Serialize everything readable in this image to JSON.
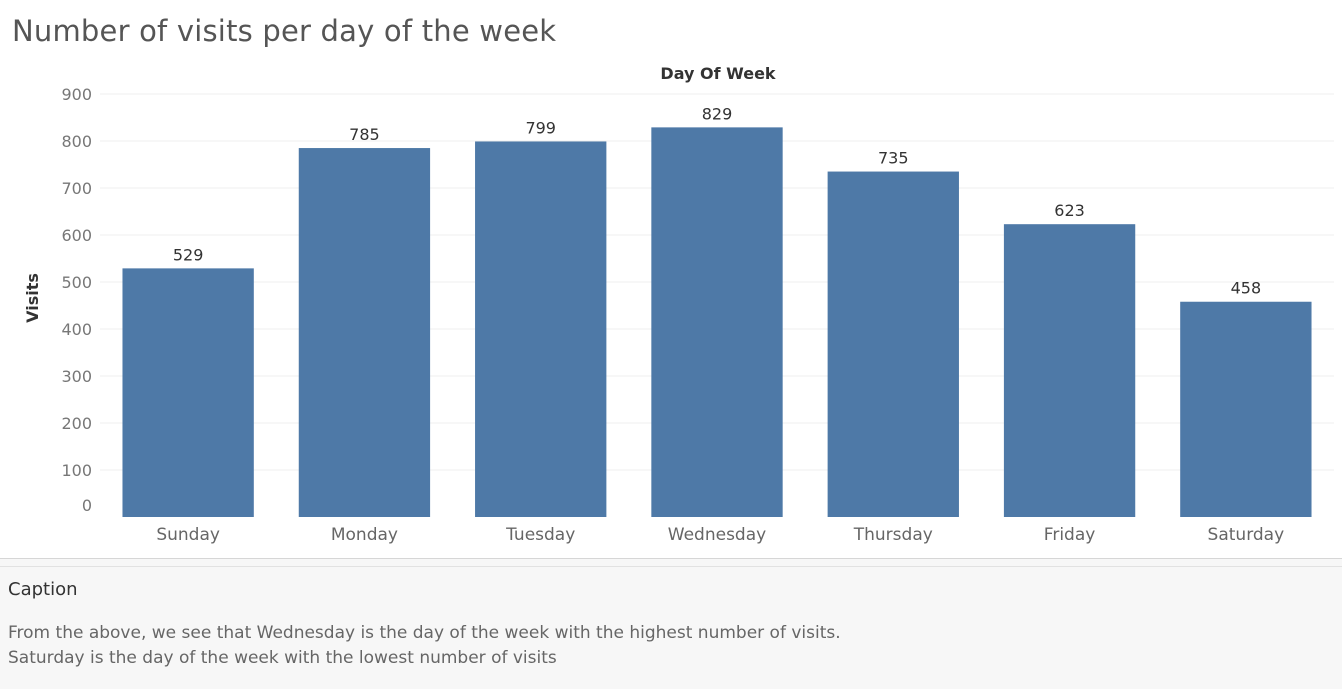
{
  "title": "Number of visits per day of the week",
  "caption": {
    "title": "Caption",
    "lines": [
      "From the above, we see that Wednesday is the day of the week with the highest number of visits.",
      "Saturday is the day of the week with the lowest number of visits"
    ]
  },
  "chart_data": {
    "type": "bar",
    "title": "Number of visits per day of the week",
    "xlabel": "Day Of Week",
    "ylabel": "Visits",
    "categories": [
      "Sunday",
      "Monday",
      "Tuesday",
      "Wednesday",
      "Thursday",
      "Friday",
      "Saturday"
    ],
    "values": [
      529,
      785,
      799,
      829,
      735,
      623,
      458
    ],
    "ylim": [
      0,
      900
    ],
    "yticks": [
      0,
      100,
      200,
      300,
      400,
      500,
      600,
      700,
      800,
      900
    ],
    "xlabel_position": "top",
    "grid": true,
    "legend": "none",
    "bar_color": "#4e79a7"
  }
}
